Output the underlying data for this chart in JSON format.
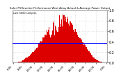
{
  "title": "Solar PV/Inverter Performance West Array Actual & Average Power Output",
  "subtitle": "Last 5000 samples",
  "bg_color": "#ffffff",
  "plot_bg": "#ffffff",
  "grid_color": "#cccccc",
  "bar_color": "#dd0000",
  "avg_line_color": "#0000ff",
  "avg_value": 0.38,
  "ylim": [
    0,
    1.0
  ],
  "num_bars": 120
}
